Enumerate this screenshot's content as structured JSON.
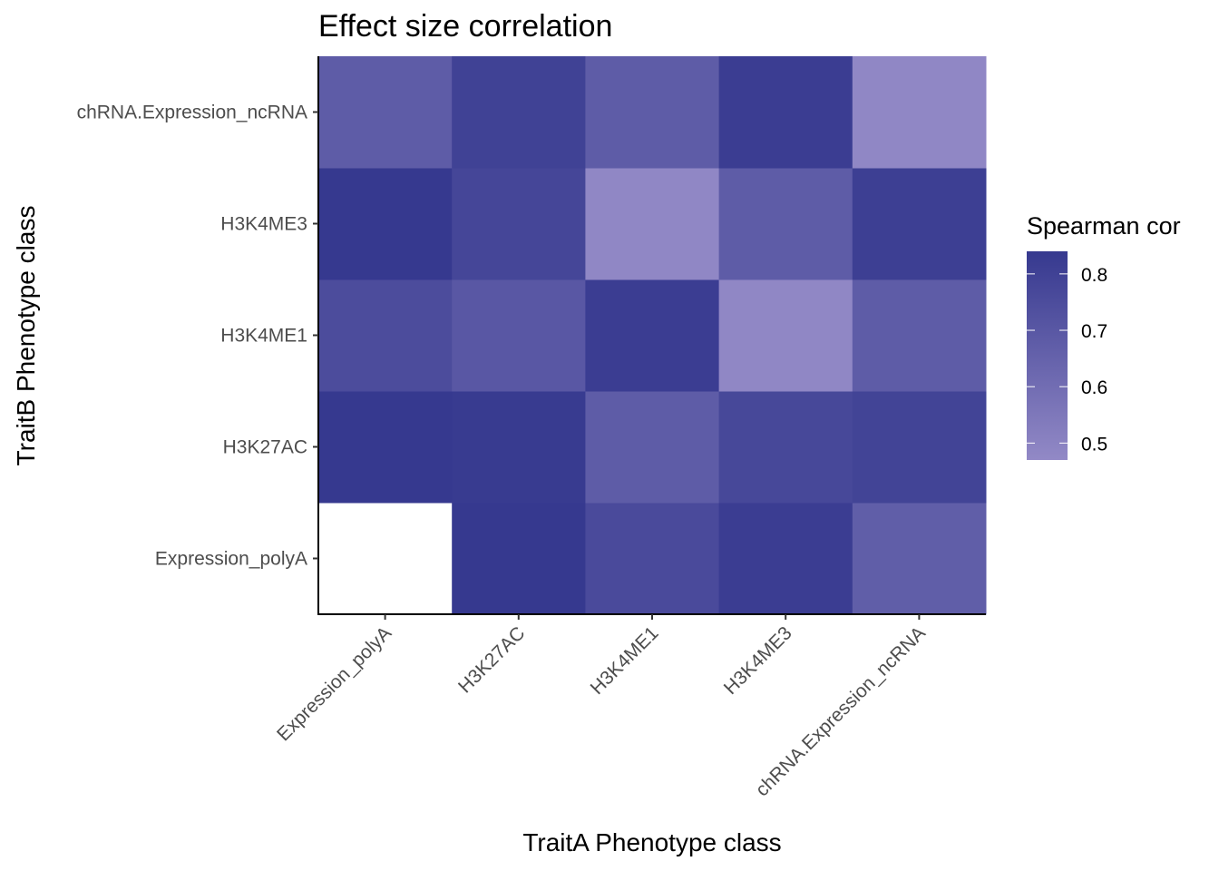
{
  "chart_data": {
    "type": "heatmap",
    "title": "Effect size correlation",
    "xlabel": "TraitA Phenotype class",
    "ylabel": "TraitB Phenotype class",
    "x_categories": [
      "Expression_polyA",
      "H3K27AC",
      "H3K4ME1",
      "H3K4ME3",
      "chRNA.Expression_ncRNA"
    ],
    "y_categories": [
      "Expression_polyA",
      "H3K27AC",
      "H3K4ME1",
      "H3K4ME3",
      "chRNA.Expression_ncRNA"
    ],
    "values": [
      [
        null,
        0.84,
        0.76,
        0.82,
        0.67
      ],
      [
        0.84,
        0.83,
        0.68,
        0.77,
        0.79
      ],
      [
        0.75,
        0.7,
        0.82,
        0.48,
        0.68
      ],
      [
        0.84,
        0.78,
        0.48,
        0.68,
        0.81
      ],
      [
        0.68,
        0.8,
        0.68,
        0.82,
        0.48
      ]
    ],
    "legend": {
      "title": "Spearman cor",
      "ticks": [
        0.5,
        0.6,
        0.7,
        0.8
      ],
      "tick_labels": [
        "0.5",
        "0.6",
        "0.7",
        "0.8"
      ],
      "range": [
        0.47,
        0.84
      ],
      "low_color": "#9289c6",
      "high_color": "#36398f",
      "placement": "right"
    },
    "missing_color": "#ffffff"
  }
}
